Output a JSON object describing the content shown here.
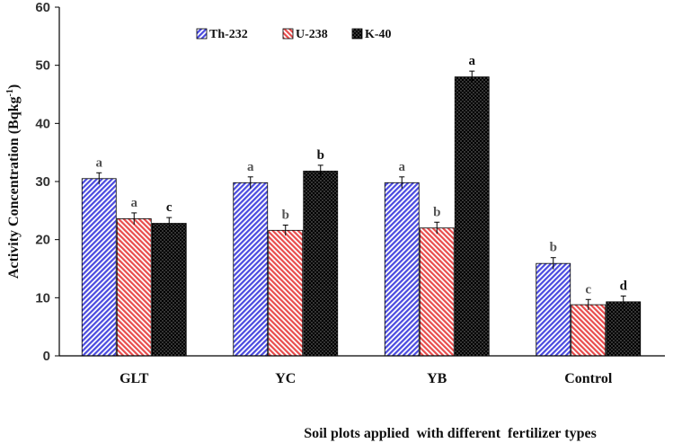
{
  "chart_data": {
    "type": "bar",
    "categories": [
      "GLT",
      "YC",
      "YB",
      "Control"
    ],
    "series": [
      {
        "name": "Th-232",
        "values": [
          30.5,
          29.8,
          29.8,
          15.9
        ],
        "errors": [
          1.0,
          1.0,
          1.0,
          1.0
        ],
        "letters": [
          "a",
          "a",
          "a",
          "b"
        ],
        "color": "#4a4adf"
      },
      {
        "name": "U-238",
        "values": [
          23.6,
          21.6,
          22.0,
          8.8
        ],
        "errors": [
          1.0,
          0.9,
          1.0,
          0.9
        ],
        "letters": [
          "a",
          "b",
          "b",
          "c"
        ],
        "color": "#e84c4c"
      },
      {
        "name": "K-40",
        "values": [
          22.8,
          31.8,
          48.0,
          9.3
        ],
        "errors": [
          1.0,
          1.0,
          1.0,
          1.0
        ],
        "letters": [
          "c",
          "b",
          "a",
          "d"
        ],
        "color": "#000000"
      }
    ],
    "title": "",
    "xlabel": "Soil plots applied  with different  fertilizer types",
    "ylabel_main": "Activity Concentration (Bqkg",
    "ylabel_sup": "-1",
    "ylabel_close": ")",
    "ylim": [
      0,
      60
    ],
    "yticks": [
      "0",
      "10",
      "20",
      "30",
      "40",
      "50",
      "60"
    ],
    "legend_position": "top-left",
    "grid": false
  }
}
